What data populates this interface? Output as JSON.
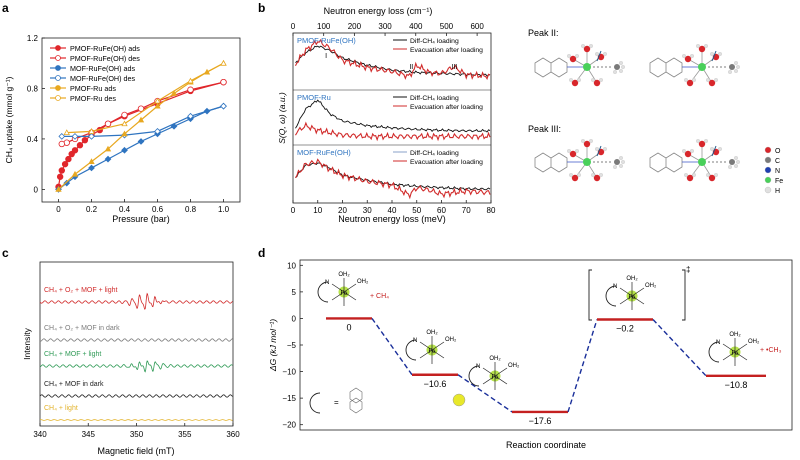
{
  "panel_labels": {
    "a": "a",
    "b": "b",
    "c": "c",
    "d": "d"
  },
  "panel_a": {
    "ylabel": "CH₄ uptake (mmol g⁻¹)",
    "xlabel": "Pressure (bar)",
    "legend": [
      "PMOF-RuFe(OH) ads",
      "PMOF-RuFe(OH) des",
      "MOF-RuFe(OH) ads",
      "MOF-RuFe(OH) des",
      "PMOF-Ru ads",
      "PMOF-Ru des"
    ],
    "colors": [
      "#e0262b",
      "#e0262b",
      "#2f74c0",
      "#2f74c0",
      "#e8a820",
      "#e8a820"
    ]
  },
  "panel_b": {
    "top_xlabel": "Neutron energy loss (cm⁻¹)",
    "xlabel": "Neutron energy loss (meV)",
    "ylabel": "S(Q, ω) (a.u.)",
    "subplots": [
      {
        "title": "PMOF-RuFe(OH)",
        "legend": [
          "Diff-CH₄ loading",
          "Evacuation after loading"
        ],
        "peaks": [
          "I",
          "II",
          "III"
        ]
      },
      {
        "title": "PMOF-Ru",
        "legend": [
          "Diff-CH₄ loading",
          "Evacuation after loading"
        ]
      },
      {
        "title": "MOF-RuFe(OH)",
        "legend": [
          "Diff-CH₄ loading",
          "Evacuation after loading"
        ]
      }
    ],
    "peak_II": "Peak II:",
    "peak_III": "Peak III:",
    "atom_legend": [
      "O",
      "C",
      "N",
      "Fe",
      "H"
    ],
    "atom_colors": [
      "#d8262b",
      "#7a7a7a",
      "#1f3fb0",
      "#49d05a",
      "#e0e0e0"
    ]
  },
  "panel_c": {
    "ylabel": "Intensity",
    "xlabel": "Magnetic field (mT)",
    "traces": [
      {
        "label": "CH₄ + O₂ + MOF + light",
        "color": "#d12b2b"
      },
      {
        "label": "CH₄ + O₂ + MOF in dark",
        "color": "#7c7c7c"
      },
      {
        "label": "CH₄ + MOF + light",
        "color": "#2f9a56"
      },
      {
        "label": "CH₄ + MOF in dark",
        "color": "#222222"
      },
      {
        "label": "CH₄ + light",
        "color": "#e3b32c"
      }
    ]
  },
  "panel_d": {
    "ylabel": "ΔG (kJ mol⁻¹)",
    "xlabel": "Reaction coordinate",
    "states": [
      {
        "label": "0",
        "value": 0
      },
      {
        "label": "−10.6",
        "value": -10.6
      },
      {
        "label": "−17.6",
        "value": -17.6
      },
      {
        "label": "−0.2",
        "value": -0.2
      },
      {
        "label": "−10.8",
        "value": -10.8
      }
    ],
    "texts": {
      "ch4": "+ CH₄",
      "ch3": "+ •CH₃",
      "ts": "‡",
      "fe": "Fe",
      "oh2": "OH₂",
      "n": "N",
      "eq": "="
    }
  },
  "chart_data": [
    {
      "type": "line",
      "panel": "a",
      "xlabel": "Pressure (bar)",
      "ylabel": "CH₄ uptake (mmol g⁻¹)",
      "xlim": [
        -0.1,
        1.1
      ],
      "ylim": [
        -0.1,
        1.2
      ],
      "xticks": [
        0,
        0.2,
        0.4,
        0.6,
        0.8,
        1.0
      ],
      "yticks": [
        0,
        0.4,
        0.8,
        1.2
      ],
      "series": [
        {
          "name": "PMOF-RuFe(OH) ads",
          "x": [
            0,
            0.01,
            0.02,
            0.04,
            0.06,
            0.08,
            0.1,
            0.13,
            0.16,
            0.2,
            0.25,
            0.3,
            0.4,
            0.6,
            0.8,
            1.0
          ],
          "y": [
            0.02,
            0.1,
            0.15,
            0.2,
            0.24,
            0.28,
            0.31,
            0.35,
            0.39,
            0.43,
            0.47,
            0.52,
            0.58,
            0.68,
            0.78,
            0.85
          ]
        },
        {
          "name": "PMOF-RuFe(OH) des",
          "x": [
            1.0,
            0.8,
            0.6,
            0.5,
            0.4,
            0.3,
            0.2,
            0.1,
            0.05,
            0.02
          ],
          "y": [
            0.85,
            0.79,
            0.7,
            0.64,
            0.59,
            0.52,
            0.45,
            0.4,
            0.37,
            0.36
          ]
        },
        {
          "name": "MOF-RuFe(OH) ads",
          "x": [
            0,
            0.05,
            0.1,
            0.2,
            0.3,
            0.4,
            0.5,
            0.6,
            0.7,
            0.8,
            0.9,
            1.0
          ],
          "y": [
            0,
            0.05,
            0.1,
            0.17,
            0.24,
            0.31,
            0.38,
            0.44,
            0.5,
            0.56,
            0.62,
            0.66
          ]
        },
        {
          "name": "MOF-RuFe(OH) des",
          "x": [
            1.0,
            0.8,
            0.6,
            0.4,
            0.2,
            0.1,
            0.02
          ],
          "y": [
            0.66,
            0.58,
            0.46,
            0.43,
            0.42,
            0.42,
            0.42
          ]
        },
        {
          "name": "PMOF-Ru ads",
          "x": [
            0,
            0.1,
            0.2,
            0.3,
            0.4,
            0.5,
            0.6,
            0.7,
            0.8,
            0.9,
            1.0
          ],
          "y": [
            0,
            0.12,
            0.22,
            0.32,
            0.44,
            0.55,
            0.66,
            0.76,
            0.85,
            0.93,
            1.0
          ]
        },
        {
          "name": "PMOF-Ru des",
          "x": [
            1.0,
            0.8,
            0.6,
            0.4,
            0.2,
            0.05
          ],
          "y": [
            1.0,
            0.86,
            0.7,
            0.52,
            0.46,
            0.45
          ]
        }
      ]
    },
    {
      "type": "line",
      "panel": "b",
      "xlabel": "Neutron energy loss (meV)",
      "x2label": "Neutron energy loss (cm⁻¹)",
      "ylabel": "S(Q, ω) (a.u.)",
      "xlim": [
        0,
        80
      ],
      "xticks": [
        0,
        10,
        20,
        30,
        40,
        50,
        60,
        70,
        80
      ],
      "x2ticks": [
        0,
        100,
        200,
        300,
        400,
        500,
        600
      ],
      "series": [
        {
          "name": "PMOF-RuFe(OH) Diff-CH₄ loading",
          "x": [
            0,
            5,
            10,
            15,
            20,
            30,
            40,
            50,
            60,
            70,
            80
          ],
          "y": [
            0.45,
            0.7,
            0.85,
            0.75,
            0.6,
            0.45,
            0.35,
            0.3,
            0.28,
            0.26,
            0.25
          ]
        },
        {
          "name": "PMOF-RuFe(OH) Evacuation after loading",
          "x": [
            0,
            5,
            10,
            15,
            20,
            30,
            40,
            47,
            50,
            55,
            60,
            65,
            70,
            80
          ],
          "y": [
            0.4,
            0.75,
            0.95,
            0.8,
            0.55,
            0.4,
            0.32,
            0.22,
            0.45,
            0.3,
            0.28,
            0.42,
            0.25,
            0.22
          ]
        },
        {
          "name": "PMOF-Ru Diff-CH₄ loading",
          "x": [
            0,
            5,
            10,
            15,
            20,
            30,
            40,
            50,
            60,
            70,
            80
          ],
          "y": [
            0.2,
            0.7,
            0.9,
            0.6,
            0.45,
            0.35,
            0.3,
            0.27,
            0.25,
            0.24,
            0.24
          ]
        },
        {
          "name": "PMOF-Ru Evacuation after loading",
          "x": [
            0,
            5,
            10,
            15,
            20,
            30,
            40,
            50,
            60,
            70,
            80
          ],
          "y": [
            0.15,
            0.35,
            0.25,
            0.2,
            0.15,
            0.12,
            0.12,
            0.12,
            0.12,
            0.12,
            0.12
          ]
        },
        {
          "name": "MOF-RuFe(OH) Diff-CH₄ loading",
          "x": [
            0,
            5,
            10,
            15,
            20,
            30,
            40,
            50,
            60,
            70,
            80
          ],
          "y": [
            0.4,
            0.7,
            0.75,
            0.65,
            0.5,
            0.4,
            0.32,
            0.28,
            0.25,
            0.23,
            0.22
          ]
        },
        {
          "name": "MOF-RuFe(OH) Evacuation after loading",
          "x": [
            0,
            5,
            10,
            15,
            20,
            30,
            40,
            47,
            50,
            55,
            60,
            70,
            80
          ],
          "y": [
            0.4,
            0.72,
            0.78,
            0.62,
            0.5,
            0.38,
            0.3,
            0.1,
            0.25,
            0.2,
            0.12,
            0.18,
            0.15
          ]
        }
      ]
    },
    {
      "type": "line",
      "panel": "c",
      "xlabel": "Magnetic field (mT)",
      "ylabel": "Intensity",
      "xlim": [
        340,
        360
      ],
      "xticks": [
        340,
        345,
        350,
        355,
        360
      ],
      "series": [
        {
          "name": "CH₄ + O₂ + MOF + light",
          "center": 351,
          "spacing": 0.8,
          "lines": 7,
          "amplitude": 1.0
        },
        {
          "name": "CH₄ + O₂ + MOF in dark",
          "amplitude": 0.1
        },
        {
          "name": "CH₄ + MOF + light",
          "center": 351,
          "spacing": 0.8,
          "lines": 7,
          "amplitude": 0.8
        },
        {
          "name": "CH₄ + MOF in dark",
          "amplitude": 0.1
        },
        {
          "name": "CH₄ + light",
          "amplitude": 0.02
        }
      ]
    },
    {
      "type": "line",
      "panel": "d",
      "xlabel": "Reaction coordinate",
      "ylabel": "ΔG (kJ mol⁻¹)",
      "ylim": [
        -21,
        11
      ],
      "yticks": [
        -20,
        -15,
        -10,
        -5,
        0,
        5,
        10
      ],
      "categories": [
        "1",
        "2",
        "3",
        "4",
        "5"
      ],
      "values": [
        0,
        -10.6,
        -17.6,
        -0.2,
        -10.8
      ]
    }
  ]
}
